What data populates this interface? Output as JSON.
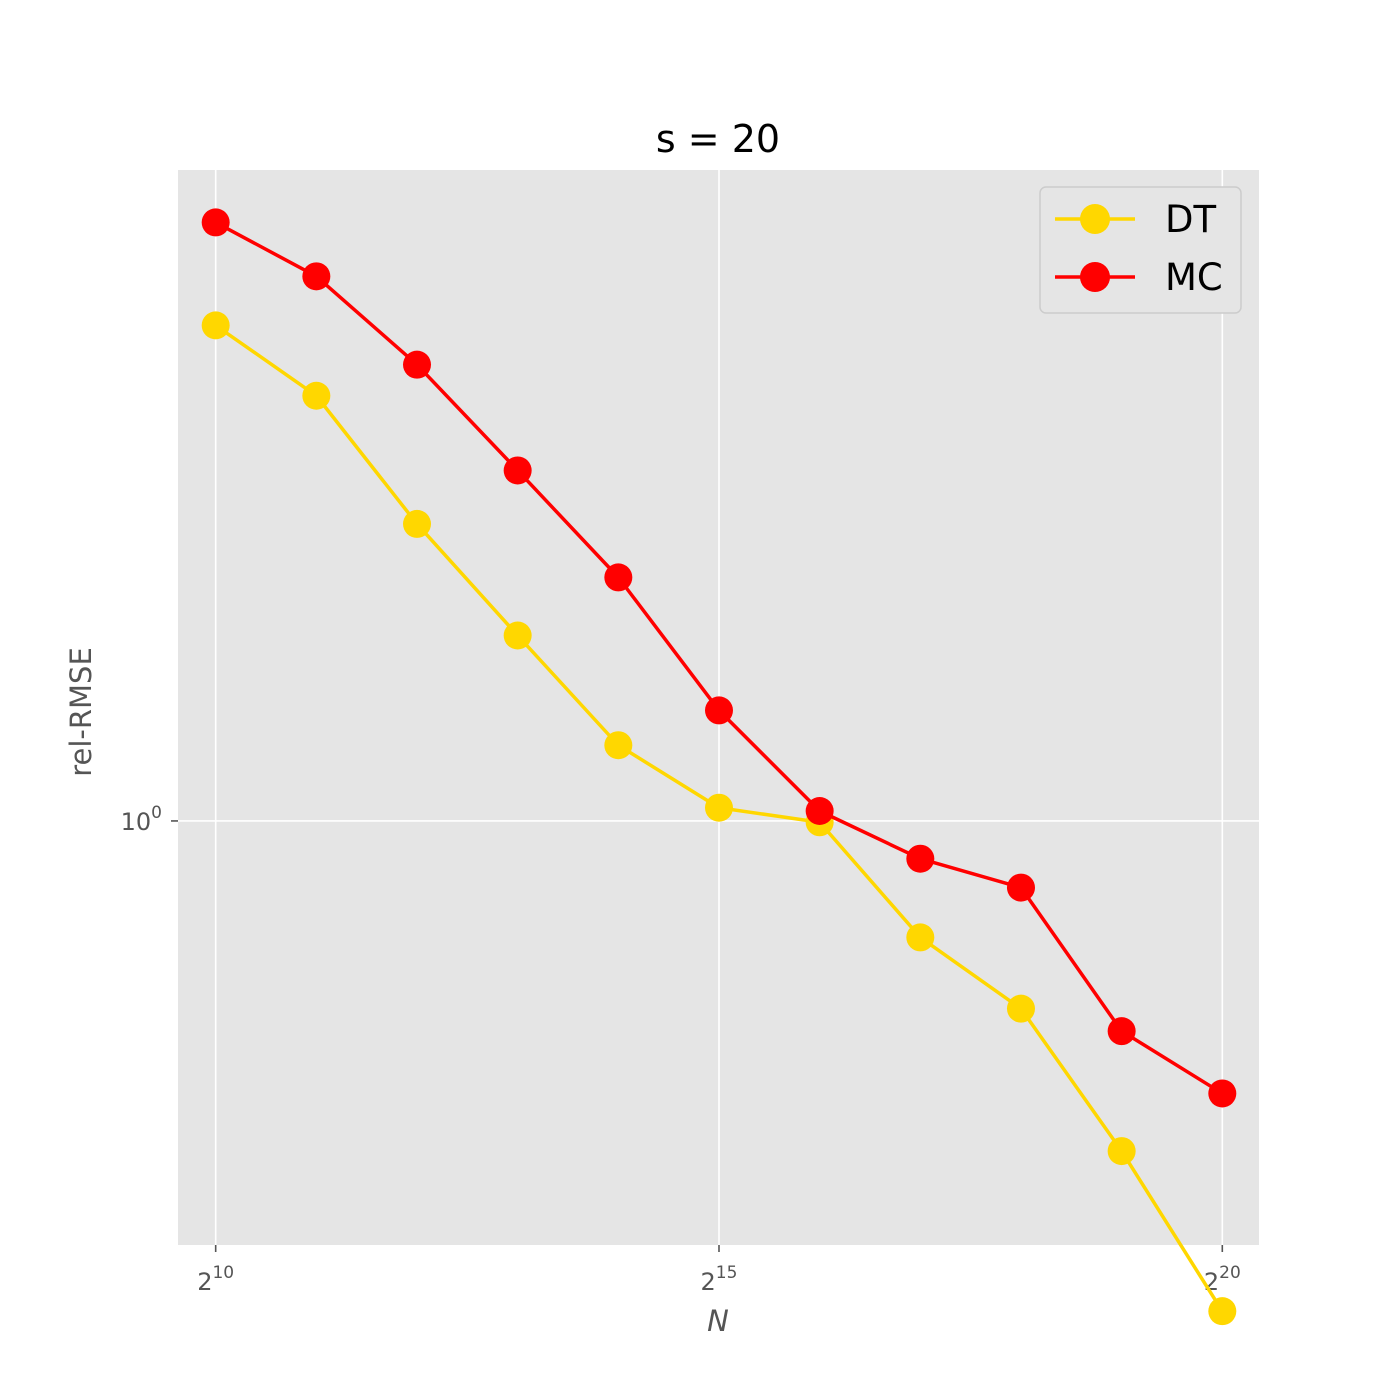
{
  "chart_data": {
    "type": "line",
    "title": "s = 20",
    "xlabel": "N",
    "ylabel": "rel-RMSE",
    "xscale": "log2",
    "yscale": "log",
    "x": [
      1024,
      2048,
      4096,
      8192,
      16384,
      32768,
      65536,
      131072,
      262144,
      524288,
      1048576
    ],
    "xticks": [
      {
        "base": "2",
        "exp": "10",
        "value": 1024
      },
      {
        "base": "2",
        "exp": "15",
        "value": 32768
      },
      {
        "base": "2",
        "exp": "20",
        "value": 1048576
      }
    ],
    "yticks": [
      {
        "base": "10",
        "exp": "0",
        "value": 1
      }
    ],
    "xlim": [
      790,
      1350000
    ],
    "ylim": [
      0.53,
      2.65
    ],
    "grid": true,
    "background": "#e5e5e5",
    "legend_position": "top-right",
    "series": [
      {
        "name": "DT",
        "color": "#ffd700",
        "values": [
          2.1,
          1.89,
          1.56,
          1.32,
          1.12,
          1.02,
          0.998,
          0.84,
          0.755,
          0.61,
          0.48
        ]
      },
      {
        "name": "MC",
        "color": "#ff0000",
        "values": [
          2.45,
          2.26,
          1.98,
          1.69,
          1.44,
          1.18,
          1.015,
          0.945,
          0.905,
          0.73,
          0.665
        ]
      }
    ]
  }
}
